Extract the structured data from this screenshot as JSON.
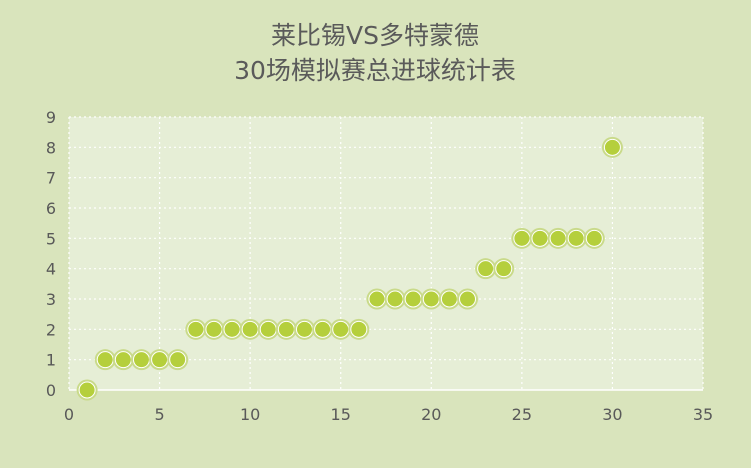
{
  "chart_data": {
    "type": "scatter",
    "title": [
      "莱比锡VS多特蒙德",
      "30场模拟赛总进球统计表"
    ],
    "xlabel": "",
    "ylabel": "",
    "xlim": [
      0,
      35
    ],
    "ylim": [
      0,
      9
    ],
    "xticks": [
      0,
      5,
      10,
      15,
      20,
      25,
      30,
      35
    ],
    "yticks": [
      0,
      1,
      2,
      3,
      4,
      5,
      6,
      7,
      8,
      9
    ],
    "grid": true,
    "legend": "none",
    "series": [
      {
        "x": [
          1,
          2,
          3,
          4,
          5,
          6,
          7,
          8,
          9,
          10,
          11,
          12,
          13,
          14,
          15,
          16,
          17,
          18,
          19,
          20,
          21,
          22,
          23,
          24,
          25,
          26,
          27,
          28,
          29,
          30
        ],
        "y": [
          0,
          1,
          1,
          1,
          1,
          1,
          2,
          2,
          2,
          2,
          2,
          2,
          2,
          2,
          2,
          2,
          3,
          3,
          3,
          3,
          3,
          3,
          4,
          4,
          5,
          5,
          5,
          5,
          5,
          8
        ]
      }
    ],
    "colors": {
      "background": "#d9e4bc",
      "plot_area": "#e6eed6",
      "marker_fill": "#b5cf3c",
      "marker_edge": "#ffffff",
      "marker_halo": "#c9da8a",
      "text": "#595959"
    }
  }
}
